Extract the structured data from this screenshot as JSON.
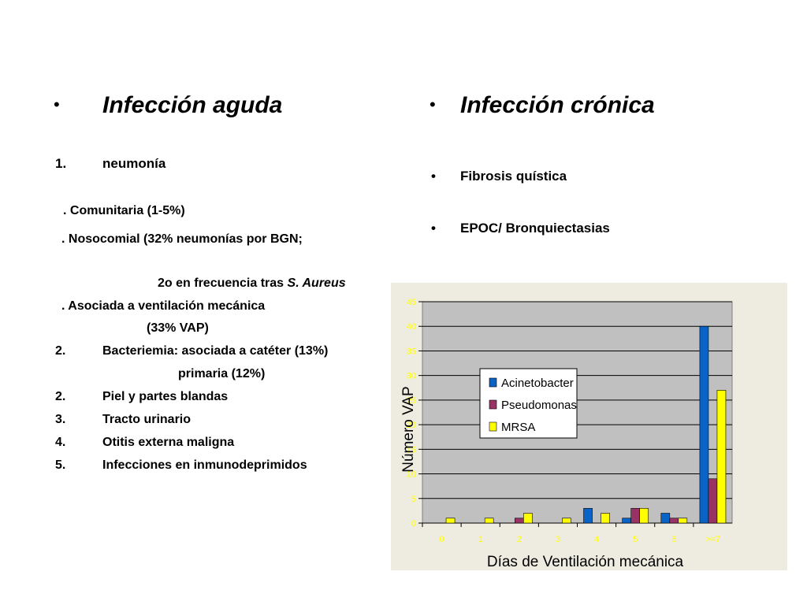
{
  "left": {
    "bullet": "•",
    "heading": "Infección aguda",
    "items": [
      {
        "num": "1.",
        "text": "neumonía"
      },
      {
        "text": ". Comunitaria (1-5%)"
      },
      {
        "text": ". Nosocomial   (32% neumonías por BGN;"
      },
      {
        "text": "2o en frecuencia tras ",
        "italic": "S. Aureus"
      },
      {
        "text": ". Asociada a ventilación mecánica"
      },
      {
        "text": "(33% VAP)"
      },
      {
        "num": "2.",
        "text": "Bacteriemia: asociada a catéter (13%)"
      },
      {
        "text": "primaria (12%)"
      },
      {
        "num": "2.",
        "text": "Piel y partes blandas"
      },
      {
        "num": "3.",
        "text": "Tracto urinario"
      },
      {
        "num": "4.",
        "text": "Otitis externa maligna"
      },
      {
        "num": "5.",
        "text": "Infecciones en inmunodeprimidos"
      }
    ]
  },
  "right": {
    "bullet": "•",
    "heading": "Infección crónica",
    "items": [
      {
        "bullet": "•",
        "text": "Fibrosis quística"
      },
      {
        "bullet": "•",
        "text": "EPOC/ Bronquiectasias"
      }
    ]
  },
  "chart_data": {
    "type": "bar",
    "xlabel": "Días de Ventilación mecánica",
    "ylabel": "Número VAP",
    "categories": [
      "0",
      "1",
      "2",
      "3",
      "4",
      "5",
      "6",
      ">=7"
    ],
    "ylim": [
      0,
      45
    ],
    "yticks": [
      0,
      5,
      10,
      15,
      20,
      25,
      30,
      35,
      40,
      45
    ],
    "grid": true,
    "legend_position": "inside-left",
    "series": [
      {
        "name": "Acinetobacter",
        "color": "#0a64c8",
        "values": [
          0,
          0,
          0,
          0,
          3,
          1,
          2,
          40
        ]
      },
      {
        "name": "Pseudomonas",
        "color": "#993366",
        "values": [
          0,
          0,
          1,
          0,
          0,
          3,
          1,
          9
        ]
      },
      {
        "name": "MRSA",
        "color": "#ffff00",
        "values": [
          1,
          1,
          2,
          1,
          2,
          3,
          1,
          27
        ]
      }
    ],
    "plot_background": "#c0c0c0",
    "tick_label_color": "#ffff00"
  }
}
